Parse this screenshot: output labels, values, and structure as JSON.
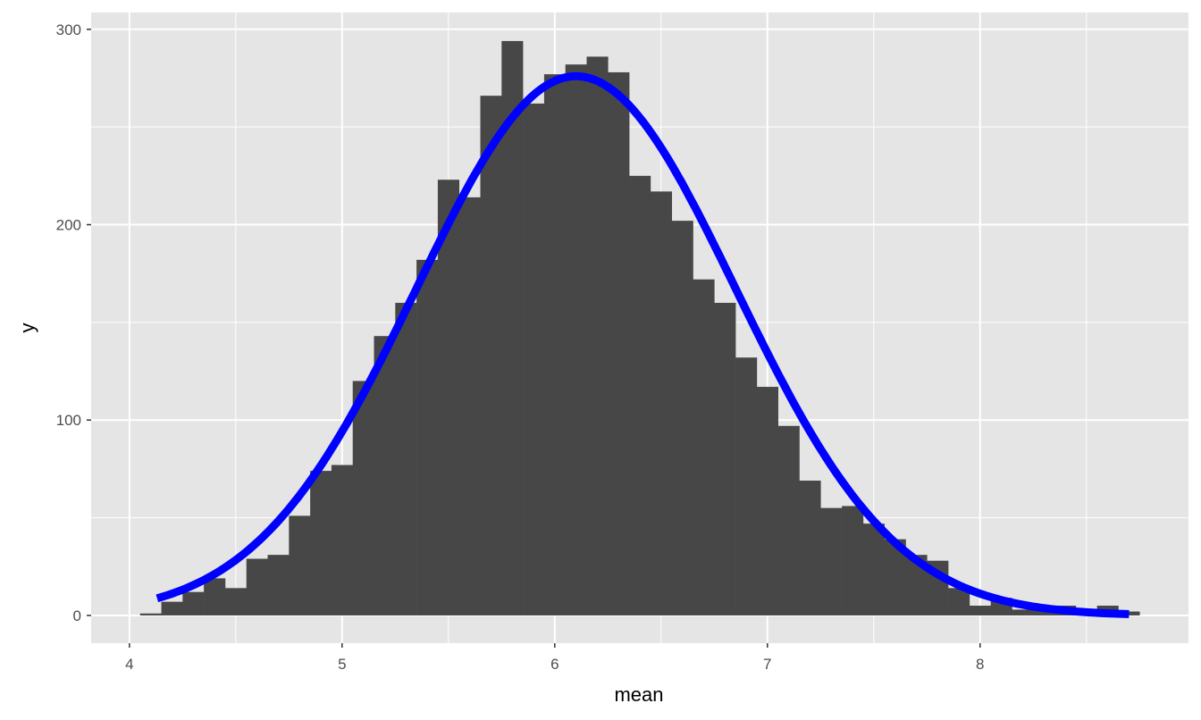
{
  "chart_data": {
    "type": "bar",
    "title": "",
    "xlabel": "mean",
    "ylabel": "y",
    "xlim": [
      3.82,
      8.98
    ],
    "ylim": [
      -14.2,
      308.6
    ],
    "grid": true,
    "x_ticks": [
      "4",
      "5",
      "6",
      "7",
      "8"
    ],
    "y_ticks": [
      "0",
      "100",
      "200",
      "300"
    ],
    "bin_width": 0.1,
    "bins": [
      4.1,
      4.2,
      4.3,
      4.4,
      4.5,
      4.6,
      4.7,
      4.8,
      4.9,
      5.0,
      5.1,
      5.2,
      5.3,
      5.4,
      5.5,
      5.6,
      5.7,
      5.8,
      5.9,
      6.0,
      6.1,
      6.2,
      6.3,
      6.4,
      6.5,
      6.6,
      6.7,
      6.8,
      6.9,
      7.0,
      7.1,
      7.2,
      7.3,
      7.4,
      7.5,
      7.6,
      7.7,
      7.8,
      7.9,
      8.0,
      8.1,
      8.2,
      8.3,
      8.4,
      8.5,
      8.6,
      8.7
    ],
    "counts": [
      1,
      7,
      12,
      19,
      14,
      29,
      31,
      51,
      74,
      77,
      120,
      143,
      160,
      182,
      223,
      214,
      266,
      294,
      262,
      277,
      282,
      286,
      278,
      225,
      217,
      202,
      172,
      160,
      132,
      117,
      97,
      69,
      55,
      56,
      47,
      39,
      31,
      28,
      14,
      5,
      9,
      3,
      4,
      5,
      1,
      5,
      2
    ],
    "normal_curve": {
      "mean": 6.1,
      "sd": 0.75,
      "peak": 276,
      "x_range": [
        4.13,
        8.7
      ],
      "color": "#0000FF"
    },
    "bar_color": "#474747",
    "panel_color": "#E5E5E5"
  }
}
